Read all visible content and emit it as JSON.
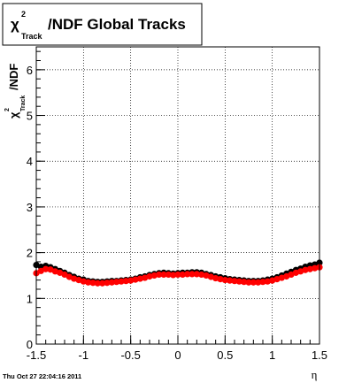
{
  "chart_data": {
    "type": "scatter",
    "title": {
      "chi": "χ",
      "sup": "2",
      "sub": "Track",
      "rest": "/NDF  Global Tracks"
    },
    "ylabel": {
      "chi": "χ",
      "sup": "2",
      "sub": "Track",
      "rest": "/NDF"
    },
    "xlabel": "η",
    "xlim": [
      -1.5,
      1.5
    ],
    "ylim": [
      0,
      6.5
    ],
    "xticks": [
      "-1.5",
      "-1",
      "-0.5",
      "0",
      "0.5",
      "1",
      "1.5"
    ],
    "yticks": [
      "0",
      "1",
      "2",
      "3",
      "4",
      "5",
      "6"
    ],
    "grid": true,
    "series": [
      {
        "color": "#000000",
        "x": [
          -1.5,
          -1.45,
          -1.4,
          -1.35,
          -1.3,
          -1.25,
          -1.2,
          -1.15,
          -1.1,
          -1.05,
          -1.0,
          -0.95,
          -0.9,
          -0.85,
          -0.8,
          -0.75,
          -0.7,
          -0.65,
          -0.6,
          -0.55,
          -0.5,
          -0.45,
          -0.4,
          -0.35,
          -0.3,
          -0.25,
          -0.2,
          -0.15,
          -0.1,
          -0.05,
          0.0,
          0.05,
          0.1,
          0.15,
          0.2,
          0.25,
          0.3,
          0.35,
          0.4,
          0.45,
          0.5,
          0.55,
          0.6,
          0.65,
          0.7,
          0.75,
          0.8,
          0.85,
          0.9,
          0.95,
          1.0,
          1.05,
          1.1,
          1.15,
          1.2,
          1.25,
          1.3,
          1.35,
          1.4,
          1.45,
          1.5
        ],
        "values": [
          1.73,
          1.69,
          1.71,
          1.68,
          1.64,
          1.6,
          1.56,
          1.51,
          1.47,
          1.43,
          1.41,
          1.38,
          1.37,
          1.36,
          1.36,
          1.37,
          1.38,
          1.38,
          1.39,
          1.4,
          1.41,
          1.43,
          1.46,
          1.48,
          1.51,
          1.53,
          1.55,
          1.56,
          1.55,
          1.54,
          1.55,
          1.56,
          1.56,
          1.57,
          1.57,
          1.56,
          1.53,
          1.51,
          1.48,
          1.46,
          1.44,
          1.42,
          1.41,
          1.4,
          1.39,
          1.38,
          1.38,
          1.38,
          1.39,
          1.41,
          1.43,
          1.46,
          1.5,
          1.54,
          1.58,
          1.62,
          1.65,
          1.69,
          1.72,
          1.74,
          1.78
        ]
      },
      {
        "color": "#ff0000",
        "x": [
          -1.5,
          -1.45,
          -1.4,
          -1.35,
          -1.3,
          -1.25,
          -1.2,
          -1.15,
          -1.1,
          -1.05,
          -1.0,
          -0.95,
          -0.9,
          -0.85,
          -0.8,
          -0.75,
          -0.7,
          -0.65,
          -0.6,
          -0.55,
          -0.5,
          -0.45,
          -0.4,
          -0.35,
          -0.3,
          -0.25,
          -0.2,
          -0.15,
          -0.1,
          -0.05,
          0.0,
          0.05,
          0.1,
          0.15,
          0.2,
          0.25,
          0.3,
          0.35,
          0.4,
          0.45,
          0.5,
          0.55,
          0.6,
          0.65,
          0.7,
          0.75,
          0.8,
          0.85,
          0.9,
          0.95,
          1.0,
          1.05,
          1.1,
          1.15,
          1.2,
          1.25,
          1.3,
          1.35,
          1.4,
          1.45,
          1.5
        ],
        "values": [
          1.55,
          1.6,
          1.64,
          1.63,
          1.59,
          1.56,
          1.52,
          1.47,
          1.43,
          1.4,
          1.37,
          1.35,
          1.34,
          1.33,
          1.33,
          1.34,
          1.35,
          1.36,
          1.37,
          1.38,
          1.39,
          1.41,
          1.43,
          1.45,
          1.48,
          1.5,
          1.52,
          1.52,
          1.52,
          1.51,
          1.52,
          1.52,
          1.53,
          1.53,
          1.53,
          1.52,
          1.5,
          1.47,
          1.44,
          1.42,
          1.4,
          1.39,
          1.38,
          1.37,
          1.36,
          1.35,
          1.35,
          1.35,
          1.36,
          1.37,
          1.39,
          1.42,
          1.45,
          1.48,
          1.52,
          1.56,
          1.59,
          1.62,
          1.64,
          1.66,
          1.68
        ]
      }
    ]
  },
  "footer": {
    "timestamp": "Thu Oct 27 22:04:16 2011"
  }
}
